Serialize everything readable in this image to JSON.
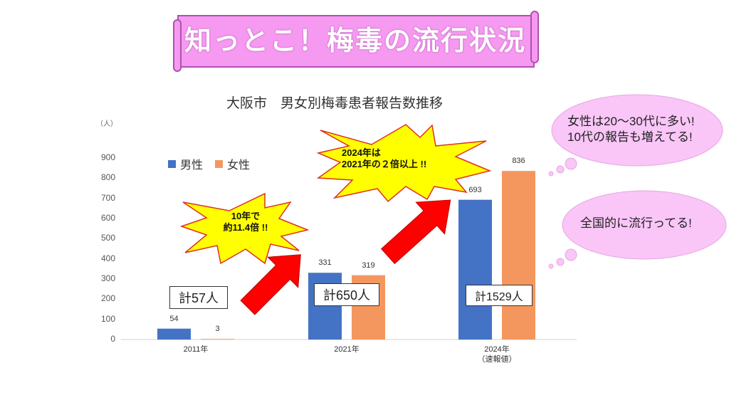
{
  "banner": {
    "title": "知っとこ！梅毒の流行状況"
  },
  "annotations": {
    "burst1": [
      "10年で",
      "約11.4倍 !!"
    ],
    "burst2": [
      "2024年は",
      "2021年の２倍以上 !!"
    ],
    "totals": [
      "計57人",
      "計650人",
      "計1529人"
    ],
    "cloud1": [
      "女性は20〜30代に多い!",
      "10代の報告も増えてる!"
    ],
    "cloud2": "全国的に流行ってる!"
  },
  "chart_data": {
    "type": "bar",
    "title": "大阪市　男女別梅毒患者報告数推移",
    "ylabel": "（人）",
    "categories": [
      "2011年",
      "2021年",
      "2024年\n（速報値）"
    ],
    "series": [
      {
        "name": "男性",
        "values": [
          54,
          331,
          693
        ],
        "color": "#4472c4"
      },
      {
        "name": "女性",
        "values": [
          3,
          319,
          836
        ],
        "color": "#f4975f"
      }
    ],
    "ylim": [
      0,
      900
    ],
    "yticks": [
      0,
      100,
      200,
      300,
      400,
      500,
      600,
      700,
      800,
      900
    ],
    "grid": false,
    "legend": "top-left"
  }
}
